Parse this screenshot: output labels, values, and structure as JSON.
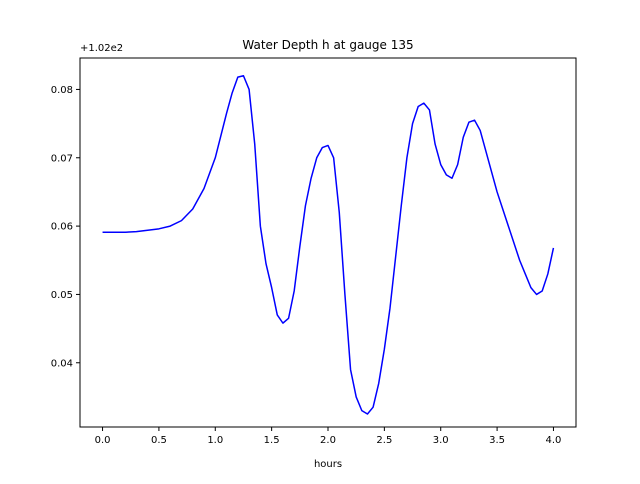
{
  "chart_data": {
    "type": "line",
    "title": "Water Depth h at gauge 135",
    "xlabel": "hours",
    "ylabel": "",
    "offset_label": "+1.02e2",
    "xlim": [
      -0.2,
      4.2
    ],
    "ylim": [
      0.0306,
      0.0846
    ],
    "x_ticks": [
      0.0,
      0.5,
      1.0,
      1.5,
      2.0,
      2.5,
      3.0,
      3.5,
      4.0
    ],
    "x_tick_labels": [
      "0.0",
      "0.5",
      "1.0",
      "1.5",
      "2.0",
      "2.5",
      "3.0",
      "3.5",
      "4.0"
    ],
    "y_ticks": [
      0.04,
      0.05,
      0.06,
      0.07,
      0.08
    ],
    "y_tick_labels": [
      "0.04",
      "0.05",
      "0.06",
      "0.07",
      "0.08"
    ],
    "grid": false,
    "color": "#0000ff",
    "series": [
      {
        "x": [
          0.0,
          0.1,
          0.2,
          0.3,
          0.4,
          0.5,
          0.6,
          0.7,
          0.8,
          0.9,
          1.0,
          1.1,
          1.15,
          1.2,
          1.25,
          1.3,
          1.35,
          1.4,
          1.45,
          1.5,
          1.55,
          1.6,
          1.65,
          1.7,
          1.75,
          1.8,
          1.85,
          1.9,
          1.95,
          2.0,
          2.05,
          2.1,
          2.15,
          2.2,
          2.25,
          2.3,
          2.35,
          2.4,
          2.45,
          2.5,
          2.55,
          2.6,
          2.65,
          2.7,
          2.75,
          2.8,
          2.85,
          2.9,
          2.95,
          3.0,
          3.05,
          3.1,
          3.15,
          3.2,
          3.25,
          3.3,
          3.35,
          3.4,
          3.5,
          3.6,
          3.7,
          3.75,
          3.8,
          3.85,
          3.9,
          3.95,
          4.0
        ],
        "y": [
          0.0591,
          0.0591,
          0.0591,
          0.0592,
          0.0594,
          0.0596,
          0.06,
          0.0608,
          0.0625,
          0.0655,
          0.07,
          0.0765,
          0.0795,
          0.0818,
          0.082,
          0.08,
          0.072,
          0.06,
          0.0545,
          0.051,
          0.047,
          0.0458,
          0.0465,
          0.0505,
          0.057,
          0.063,
          0.067,
          0.07,
          0.0715,
          0.0718,
          0.07,
          0.062,
          0.05,
          0.039,
          0.035,
          0.033,
          0.0325,
          0.0335,
          0.037,
          0.042,
          0.048,
          0.0555,
          0.063,
          0.07,
          0.075,
          0.0775,
          0.078,
          0.077,
          0.072,
          0.069,
          0.0675,
          0.067,
          0.069,
          0.073,
          0.0752,
          0.0755,
          0.074,
          0.071,
          0.065,
          0.06,
          0.055,
          0.053,
          0.051,
          0.05,
          0.0505,
          0.053,
          0.0568
        ]
      }
    ]
  }
}
